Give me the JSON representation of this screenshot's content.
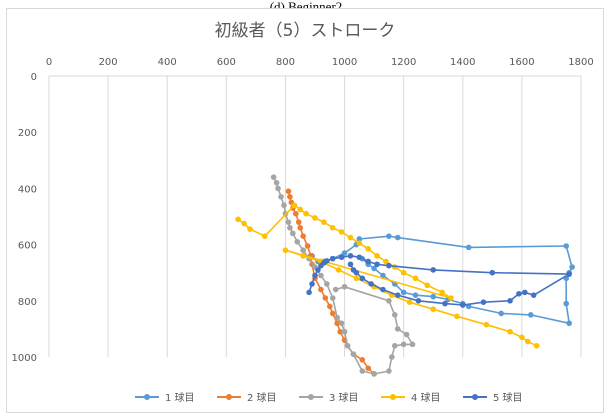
{
  "caption": "(d) Beginner2",
  "chart_data": {
    "type": "scatter",
    "title": "初級者（5）ストローク",
    "xlabel": "",
    "ylabel": "",
    "xlim": [
      0,
      1800
    ],
    "ylim": [
      0,
      1000
    ],
    "y_reversed": true,
    "x_axis_position": "top",
    "x_ticks": [
      0,
      200,
      400,
      600,
      800,
      1000,
      1200,
      1400,
      1600,
      1800
    ],
    "y_ticks": [
      0,
      200,
      400,
      600,
      800,
      1000
    ],
    "grid": "vertical",
    "legend_position": "bottom",
    "series": [
      {
        "name": "1 球目",
        "color": "#5b9bd5",
        "points": [
          [
            890,
            640
          ],
          [
            910,
            660
          ],
          [
            930,
            660
          ],
          [
            960,
            650
          ],
          [
            1000,
            630
          ],
          [
            1040,
            600
          ],
          [
            1050,
            580
          ],
          [
            1150,
            570
          ],
          [
            1180,
            575
          ],
          [
            1420,
            610
          ],
          [
            1750,
            605
          ],
          [
            1770,
            680
          ],
          [
            1760,
            700
          ],
          [
            1750,
            720
          ],
          [
            1750,
            810
          ],
          [
            1760,
            880
          ],
          [
            1630,
            850
          ],
          [
            1530,
            845
          ],
          [
            1420,
            820
          ],
          [
            1400,
            810
          ],
          [
            1350,
            795
          ],
          [
            1300,
            785
          ],
          [
            1240,
            780
          ],
          [
            1200,
            770
          ],
          [
            1170,
            740
          ],
          [
            1130,
            710
          ],
          [
            1100,
            685
          ],
          [
            1080,
            670
          ],
          [
            1060,
            650
          ]
        ]
      },
      {
        "name": "2 球目",
        "color": "#ed7d31",
        "points": [
          [
            810,
            410
          ],
          [
            815,
            430
          ],
          [
            820,
            450
          ],
          [
            825,
            470
          ],
          [
            835,
            490
          ],
          [
            845,
            520
          ],
          [
            850,
            540
          ],
          [
            860,
            570
          ],
          [
            875,
            605
          ],
          [
            885,
            640
          ],
          [
            890,
            670
          ],
          [
            900,
            720
          ],
          [
            920,
            760
          ],
          [
            935,
            790
          ],
          [
            950,
            820
          ],
          [
            960,
            845
          ],
          [
            975,
            880
          ],
          [
            985,
            910
          ],
          [
            1000,
            940
          ],
          [
            1010,
            960
          ],
          [
            1030,
            990
          ],
          [
            1060,
            1010
          ],
          [
            1080,
            1040
          ],
          [
            1100,
            1060
          ]
        ]
      },
      {
        "name": "3 球目",
        "color": "#a5a5a5",
        "points": [
          [
            760,
            360
          ],
          [
            770,
            380
          ],
          [
            775,
            400
          ],
          [
            785,
            430
          ],
          [
            795,
            460
          ],
          [
            800,
            490
          ],
          [
            810,
            520
          ],
          [
            815,
            540
          ],
          [
            825,
            560
          ],
          [
            840,
            590
          ],
          [
            860,
            620
          ],
          [
            880,
            650
          ],
          [
            900,
            680
          ],
          [
            920,
            710
          ],
          [
            940,
            740
          ],
          [
            960,
            790
          ],
          [
            975,
            860
          ],
          [
            990,
            880
          ],
          [
            1000,
            910
          ],
          [
            1010,
            960
          ],
          [
            1030,
            990
          ],
          [
            1060,
            1050
          ],
          [
            1100,
            1060
          ],
          [
            1150,
            1050
          ],
          [
            1160,
            1000
          ],
          [
            1170,
            960
          ],
          [
            1200,
            955
          ],
          [
            1230,
            955
          ],
          [
            1210,
            920
          ],
          [
            1180,
            900
          ],
          [
            1170,
            850
          ],
          [
            1150,
            800
          ],
          [
            1000,
            750
          ],
          [
            970,
            760
          ]
        ]
      },
      {
        "name": "4 球目",
        "color": "#ffc000",
        "points": [
          [
            640,
            510
          ],
          [
            660,
            525
          ],
          [
            680,
            545
          ],
          [
            730,
            570
          ],
          [
            830,
            460
          ],
          [
            850,
            475
          ],
          [
            870,
            490
          ],
          [
            900,
            505
          ],
          [
            930,
            520
          ],
          [
            960,
            540
          ],
          [
            990,
            555
          ],
          [
            1020,
            575
          ],
          [
            1050,
            595
          ],
          [
            1080,
            615
          ],
          [
            1110,
            640
          ],
          [
            1140,
            660
          ],
          [
            1170,
            680
          ],
          [
            1200,
            700
          ],
          [
            1240,
            720
          ],
          [
            1280,
            745
          ],
          [
            1330,
            770
          ],
          [
            1360,
            790
          ],
          [
            800,
            620
          ],
          [
            860,
            640
          ],
          [
            920,
            660
          ],
          [
            980,
            690
          ],
          [
            1040,
            720
          ],
          [
            1100,
            750
          ],
          [
            1160,
            780
          ],
          [
            1220,
            805
          ],
          [
            1300,
            830
          ],
          [
            1380,
            855
          ],
          [
            1480,
            885
          ],
          [
            1560,
            910
          ],
          [
            1600,
            930
          ],
          [
            1620,
            945
          ],
          [
            1650,
            960
          ]
        ]
      },
      {
        "name": "5 球目",
        "color": "#4472c4",
        "points": [
          [
            880,
            770
          ],
          [
            890,
            740
          ],
          [
            900,
            710
          ],
          [
            910,
            690
          ],
          [
            920,
            675
          ],
          [
            930,
            665
          ],
          [
            940,
            658
          ],
          [
            960,
            650
          ],
          [
            990,
            645
          ],
          [
            1020,
            640
          ],
          [
            1050,
            645
          ],
          [
            1080,
            660
          ],
          [
            1110,
            670
          ],
          [
            1150,
            675
          ],
          [
            1300,
            690
          ],
          [
            1500,
            700
          ],
          [
            1760,
            705
          ],
          [
            1640,
            780
          ],
          [
            1610,
            770
          ],
          [
            1590,
            775
          ],
          [
            1560,
            800
          ],
          [
            1470,
            805
          ],
          [
            1400,
            815
          ],
          [
            1340,
            810
          ],
          [
            1250,
            800
          ],
          [
            1180,
            780
          ],
          [
            1130,
            760
          ],
          [
            1090,
            740
          ],
          [
            1060,
            720
          ],
          [
            1040,
            700
          ],
          [
            1030,
            690
          ],
          [
            1020,
            670
          ]
        ]
      }
    ]
  }
}
